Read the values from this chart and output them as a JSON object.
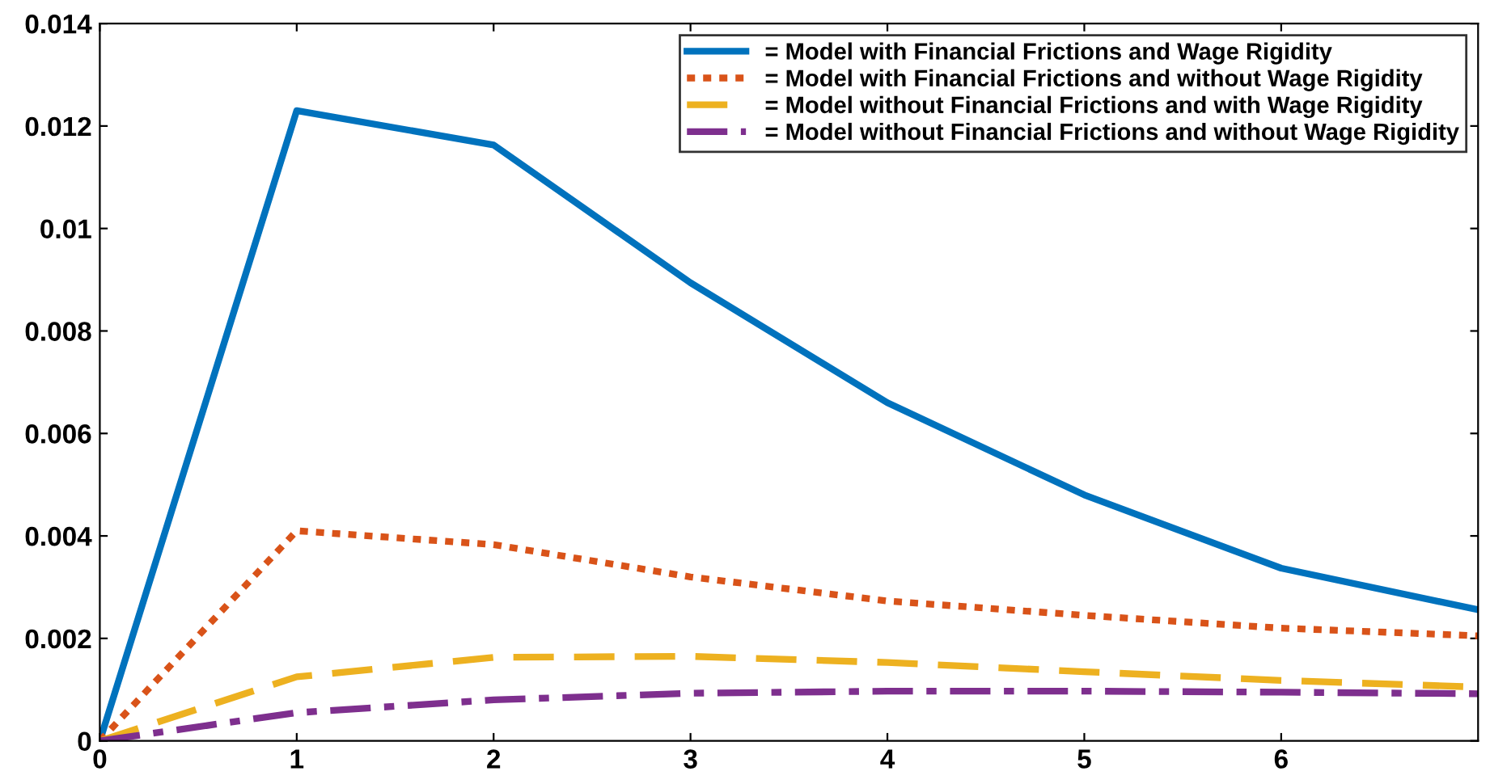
{
  "chart_data": {
    "type": "line",
    "x": [
      0,
      1,
      2,
      3,
      4,
      5,
      6,
      7
    ],
    "series": [
      {
        "name": "= Model with Financial Frictions and Wage Rigidity",
        "color": "#0072bd",
        "line_style": "solid",
        "values": [
          0,
          0.0123,
          0.01163,
          0.00894,
          0.0066,
          0.0048,
          0.00337,
          0.00256
        ]
      },
      {
        "name": "= Model with Financial Frictions and without Wage Rigidity",
        "color": "#d95319",
        "line_style": "dotted",
        "values": [
          0,
          0.0041,
          0.00383,
          0.0032,
          0.00273,
          0.00245,
          0.0022,
          0.00205
        ]
      },
      {
        "name": "= Model without Financial Frictions and with Wage Rigidity",
        "color": "#edb120",
        "line_style": "dashed",
        "values": [
          0,
          0.00125,
          0.00163,
          0.00165,
          0.00153,
          0.00135,
          0.00118,
          0.00105
        ]
      },
      {
        "name": "= Model without Financial Frictions and without Wage Rigidity",
        "color": "#7e2f8e",
        "line_style": "dashdot",
        "values": [
          0,
          0.00055,
          0.0008,
          0.00093,
          0.00097,
          0.00097,
          0.00095,
          0.00092
        ]
      }
    ],
    "xlim": [
      0,
      7
    ],
    "xticks": [
      0,
      1,
      2,
      3,
      4,
      5,
      6
    ],
    "ylim": [
      0,
      0.014
    ],
    "yticks": [
      0,
      0.002,
      0.004,
      0.006,
      0.008,
      0.01,
      0.012,
      0.014
    ],
    "grid": false,
    "legend": "top right",
    "marker": "none"
  }
}
